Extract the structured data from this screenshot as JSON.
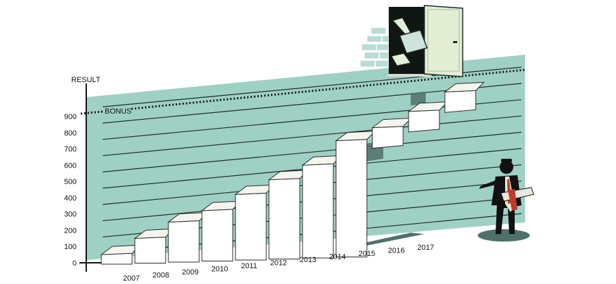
{
  "chart_data": {
    "type": "bar",
    "ylabel": "RESULT",
    "y_ticks": [
      "0",
      "100",
      "200",
      "300",
      "400",
      "500",
      "600",
      "700",
      "800",
      "900"
    ],
    "ylim": [
      0,
      1000
    ],
    "categories": [
      "2007",
      "2008",
      "2009",
      "2010",
      "2011",
      "2012",
      "2013",
      "2014",
      "2015",
      "2016",
      "2017"
    ],
    "values": [
      50,
      150,
      250,
      320,
      420,
      510,
      600,
      750,
      830,
      930,
      1050
    ],
    "annotations": [
      {
        "text": "BONUS",
        "y": 935,
        "style": "dotted-line"
      }
    ],
    "grid": true
  },
  "colors": {
    "panel": "#9fd0c4",
    "grid": "#1b2a27",
    "step_top": "#f4f5ee",
    "step_front": "#ffffff",
    "step_side": "#d9dbd2",
    "shadow": "#4f7069",
    "door": "#e3eed4"
  },
  "illustration": {
    "door": "open-door-icon",
    "bricks": "brick-wall-icon",
    "person": "businessman-with-scroll-icon"
  }
}
